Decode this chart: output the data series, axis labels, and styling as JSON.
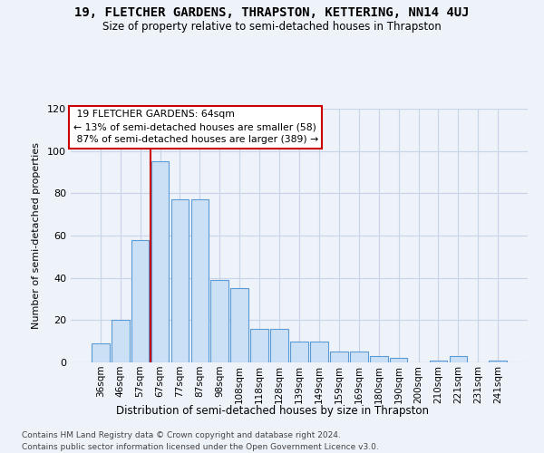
{
  "title": "19, FLETCHER GARDENS, THRAPSTON, KETTERING, NN14 4UJ",
  "subtitle": "Size of property relative to semi-detached houses in Thrapston",
  "xlabel": "Distribution of semi-detached houses by size in Thrapston",
  "ylabel": "Number of semi-detached properties",
  "categories": [
    "36sqm",
    "46sqm",
    "57sqm",
    "67sqm",
    "77sqm",
    "87sqm",
    "98sqm",
    "108sqm",
    "118sqm",
    "128sqm",
    "139sqm",
    "149sqm",
    "159sqm",
    "169sqm",
    "180sqm",
    "190sqm",
    "200sqm",
    "210sqm",
    "221sqm",
    "231sqm",
    "241sqm"
  ],
  "values": [
    9,
    20,
    58,
    95,
    77,
    77,
    39,
    35,
    16,
    16,
    10,
    10,
    5,
    5,
    3,
    2,
    0,
    1,
    3,
    0,
    1
  ],
  "bar_color": "#cce0f5",
  "bar_edge_color": "#5b9bd5",
  "marker_label": "19 FLETCHER GARDENS: 64sqm",
  "smaller_pct": 13,
  "smaller_count": 58,
  "larger_pct": 87,
  "larger_count": 389,
  "annotation_box_edge": "#cc0000",
  "marker_line_color": "#cc0000",
  "ylim": [
    0,
    120
  ],
  "yticks": [
    0,
    20,
    40,
    60,
    80,
    100,
    120
  ],
  "footer1": "Contains HM Land Registry data © Crown copyright and database right 2024.",
  "footer2": "Contains public sector information licensed under the Open Government Licence v3.0.",
  "bg_color": "#eef2f9",
  "grid_color": "#c8d4e8"
}
